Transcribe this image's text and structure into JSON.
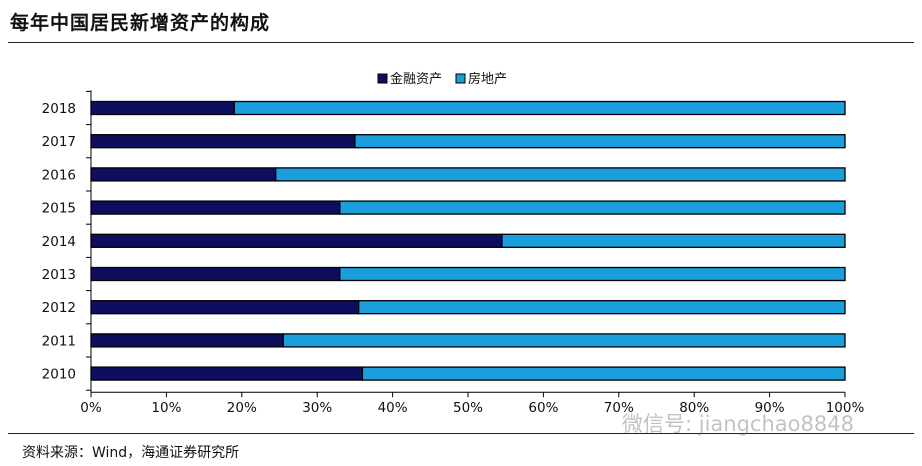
{
  "header": {
    "title": "每年中国居民新增资产的构成"
  },
  "footer": {
    "source": "资料来源：Wind，海通证券研究所"
  },
  "watermark": {
    "text": "微信号: jiangchao8848"
  },
  "colors": {
    "financial": "#0d0f5e",
    "real_estate": "#1a9fdc",
    "outline": "#000000"
  },
  "chart_data": {
    "type": "bar",
    "orientation": "horizontal",
    "stacked": true,
    "categories": [
      "2018",
      "2017",
      "2016",
      "2015",
      "2014",
      "2013",
      "2012",
      "2011",
      "2010"
    ],
    "series": [
      {
        "name": "金融资产",
        "values": [
          19,
          35,
          24.5,
          33,
          54.5,
          33,
          35.5,
          25.5,
          36
        ]
      },
      {
        "name": "房地产",
        "values": [
          81,
          65,
          75.5,
          67,
          45.5,
          67,
          64.5,
          74.5,
          64
        ]
      }
    ],
    "xlim": [
      0,
      100
    ],
    "xticks": [
      "0%",
      "10%",
      "20%",
      "30%",
      "40%",
      "50%",
      "60%",
      "70%",
      "80%",
      "90%",
      "100%"
    ],
    "legend_position": "top",
    "grid": false
  }
}
